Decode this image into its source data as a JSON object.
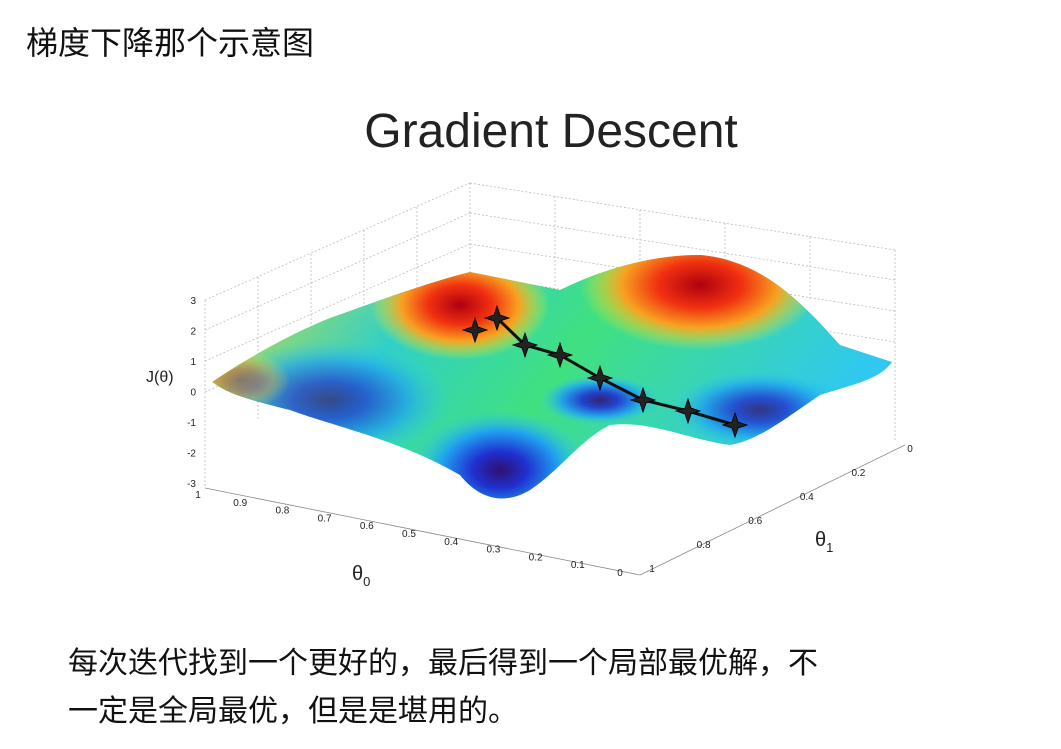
{
  "heading": "梯度下降那个示意图",
  "figure": {
    "title": "Gradient Descent",
    "z_label": "J(θ)",
    "x_label": {
      "symbol": "θ",
      "subscript": "0"
    },
    "y_label": {
      "symbol": "θ",
      "subscript": "1"
    },
    "z_ticks": [
      3,
      2,
      1,
      0,
      -1,
      -2,
      -3
    ],
    "x_ticks": [
      1,
      0.9,
      0.8,
      0.7,
      0.6,
      0.5,
      0.4,
      0.3,
      0.2,
      0.1,
      0
    ],
    "y_ticks": [
      0,
      0.2,
      0.4,
      0.6,
      0.8,
      1
    ]
  },
  "caption": [
    "每次迭代找到一个更好的，最后得到一个局部最优解，不",
    "一定是全局最优，但是是堪用的。"
  ]
}
